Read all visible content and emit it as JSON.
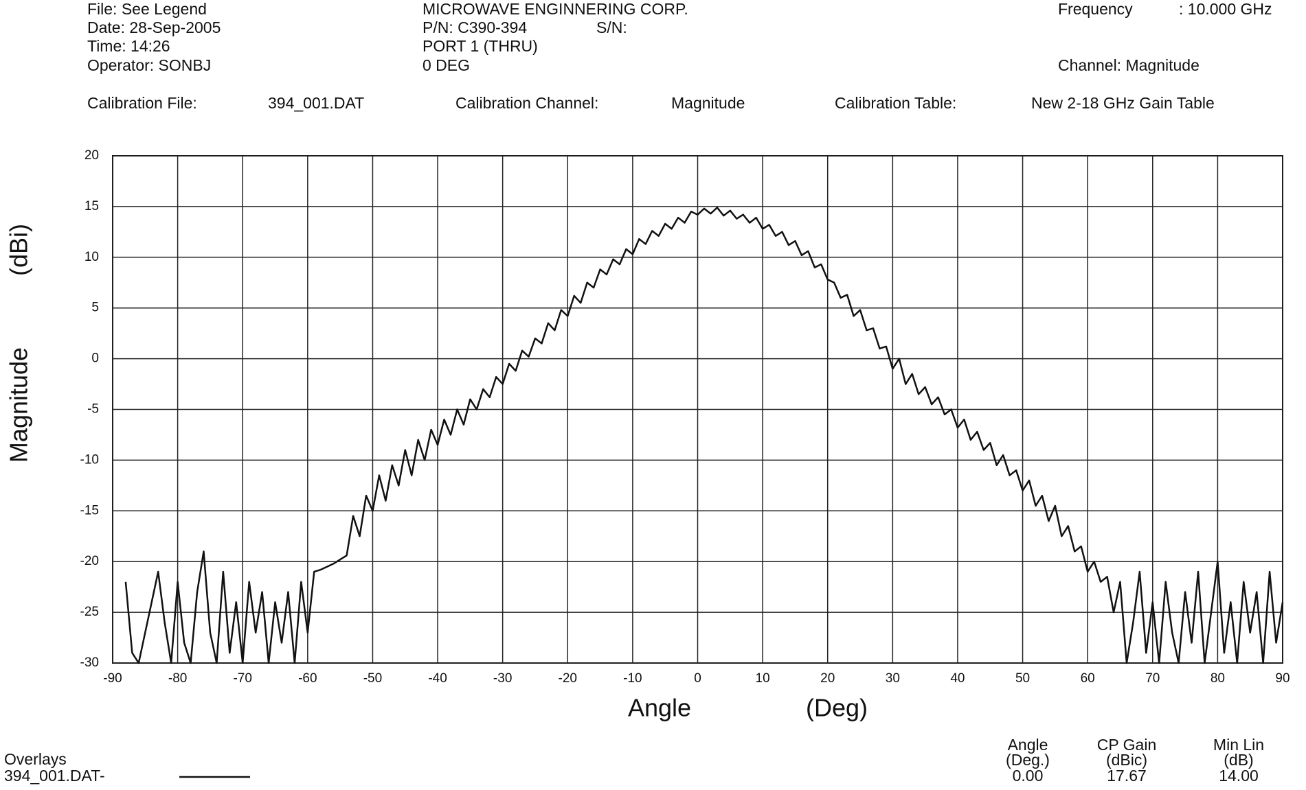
{
  "header": {
    "file": "File: See Legend",
    "date": "Date: 28-Sep-2005",
    "time": "Time: 14:26",
    "operator": "Operator: SONBJ",
    "company": "MICROWAVE ENGINNERING CORP.",
    "pn": "P/N: C390-394",
    "sn": "S/N:",
    "port": "PORT 1 (THRU)",
    "deg": "0 DEG",
    "frequency_label": "Frequency",
    "frequency": ": 10.000 GHz",
    "channel": "Channel: Magnitude",
    "cal_file_label": "Calibration File:",
    "cal_file": "394_001.DAT",
    "cal_channel_label": "Calibration Channel:",
    "cal_channel": "Magnitude",
    "cal_table_label": "Calibration Table:",
    "cal_table": "New 2-18 GHz Gain Table"
  },
  "chart_data": {
    "type": "line",
    "x_label": "Angle",
    "x_unit": "(Deg)",
    "y_label": "Magnitude",
    "y_unit": "(dBi)",
    "xlim": [
      -90,
      90
    ],
    "xticks": [
      -90,
      -80,
      -70,
      -60,
      -50,
      -40,
      -30,
      -20,
      -10,
      0,
      10,
      20,
      30,
      40,
      50,
      60,
      70,
      80,
      90
    ],
    "ylim": [
      -30,
      20
    ],
    "yticks": [
      -30,
      -25,
      -20,
      -15,
      -10,
      -5,
      0,
      5,
      10,
      15,
      20
    ],
    "grid": true,
    "legend_title": "Overlays",
    "x": [
      -88,
      -87,
      -86,
      -85,
      -84,
      -83,
      -82,
      -81,
      -80,
      -79,
      -78,
      -77,
      -76,
      -75,
      -74,
      -73,
      -72,
      -71,
      -70,
      -69,
      -68,
      -67,
      -66,
      -65,
      -64,
      -63,
      -62,
      -61,
      -60,
      -59,
      -58,
      -57,
      -56,
      -55,
      -54,
      -53,
      -52,
      -51,
      -50,
      -49,
      -48,
      -47,
      -46,
      -45,
      -44,
      -43,
      -42,
      -41,
      -40,
      -39,
      -38,
      -37,
      -36,
      -35,
      -34,
      -33,
      -32,
      -31,
      -30,
      -29,
      -28,
      -27,
      -26,
      -25,
      -24,
      -23,
      -22,
      -21,
      -20,
      -19,
      -18,
      -17,
      -16,
      -15,
      -14,
      -13,
      -12,
      -11,
      -10,
      -9,
      -8,
      -7,
      -6,
      -5,
      -4,
      -3,
      -2,
      -1,
      0,
      1,
      2,
      3,
      4,
      5,
      6,
      7,
      8,
      9,
      10,
      11,
      12,
      13,
      14,
      15,
      16,
      17,
      18,
      19,
      20,
      21,
      22,
      23,
      24,
      25,
      26,
      27,
      28,
      29,
      30,
      31,
      32,
      33,
      34,
      35,
      36,
      37,
      38,
      39,
      40,
      41,
      42,
      43,
      44,
      45,
      46,
      47,
      48,
      49,
      50,
      51,
      52,
      53,
      54,
      55,
      56,
      57,
      58,
      59,
      60,
      61,
      62,
      63,
      64,
      65,
      66,
      67,
      68,
      69,
      70,
      71,
      72,
      73,
      74,
      75,
      76,
      77,
      78,
      79,
      80,
      81,
      82,
      83,
      84,
      85,
      86,
      87,
      88,
      89,
      90
    ],
    "series": [
      {
        "name": "394_001.DAT-",
        "color": "#111111",
        "values": [
          -22,
          -29,
          -30,
          -27,
          -24,
          -21,
          -26,
          -30,
          -22,
          -28,
          -30,
          -23,
          -19,
          -27,
          -30,
          -21,
          -29,
          -24,
          -30,
          -22,
          -27,
          -23,
          -30,
          -24,
          -28,
          -23,
          -30,
          -22,
          -27,
          -21,
          -20.8,
          -20.5,
          -20.2,
          -19.8,
          -19.4,
          -15.5,
          -17.5,
          -13.5,
          -15,
          -11.5,
          -14,
          -10.5,
          -12.5,
          -9,
          -11.5,
          -8,
          -10,
          -7,
          -8.5,
          -6,
          -7.5,
          -5,
          -6.5,
          -4,
          -5,
          -3,
          -3.8,
          -1.8,
          -2.5,
          -0.5,
          -1.2,
          0.8,
          0.2,
          2,
          1.5,
          3.5,
          2.8,
          4.8,
          4.2,
          6.2,
          5.5,
          7.5,
          7,
          8.8,
          8.3,
          9.8,
          9.3,
          10.8,
          10.3,
          11.8,
          11.3,
          12.6,
          12.1,
          13.3,
          12.8,
          13.9,
          13.4,
          14.5,
          14.2,
          14.8,
          14.3,
          14.9,
          14.1,
          14.6,
          13.8,
          14.2,
          13.4,
          13.9,
          12.8,
          13.2,
          12.1,
          12.5,
          11.2,
          11.6,
          10.2,
          10.6,
          9,
          9.3,
          7.8,
          7.5,
          6,
          6.3,
          4.2,
          4.8,
          2.8,
          3,
          1,
          1.2,
          -1,
          0,
          -2.5,
          -1.5,
          -3.5,
          -2.8,
          -4.5,
          -3.8,
          -5.5,
          -5,
          -6.8,
          -6,
          -8,
          -7.2,
          -9,
          -8.3,
          -10.5,
          -9.5,
          -11.5,
          -11,
          -13,
          -12,
          -14.5,
          -13.5,
          -16,
          -14.5,
          -17.5,
          -16.5,
          -19,
          -18.5,
          -21,
          -20,
          -22,
          -21.5,
          -25,
          -22,
          -30,
          -26,
          -21,
          -29,
          -24,
          -30,
          -22,
          -27,
          -30,
          -23,
          -28,
          -21,
          -30,
          -25,
          -20,
          -29,
          -24,
          -30,
          -22,
          -27,
          -23,
          -30,
          -21,
          -28,
          -24
        ]
      }
    ]
  },
  "footer": {
    "table": {
      "headers": [
        [
          "Angle",
          "(Deg.)"
        ],
        [
          "CP Gain",
          "(dBic)"
        ],
        [
          "Min Lin",
          "(dB)"
        ]
      ],
      "values": [
        "0.00",
        "17.67",
        "14.00"
      ]
    }
  }
}
